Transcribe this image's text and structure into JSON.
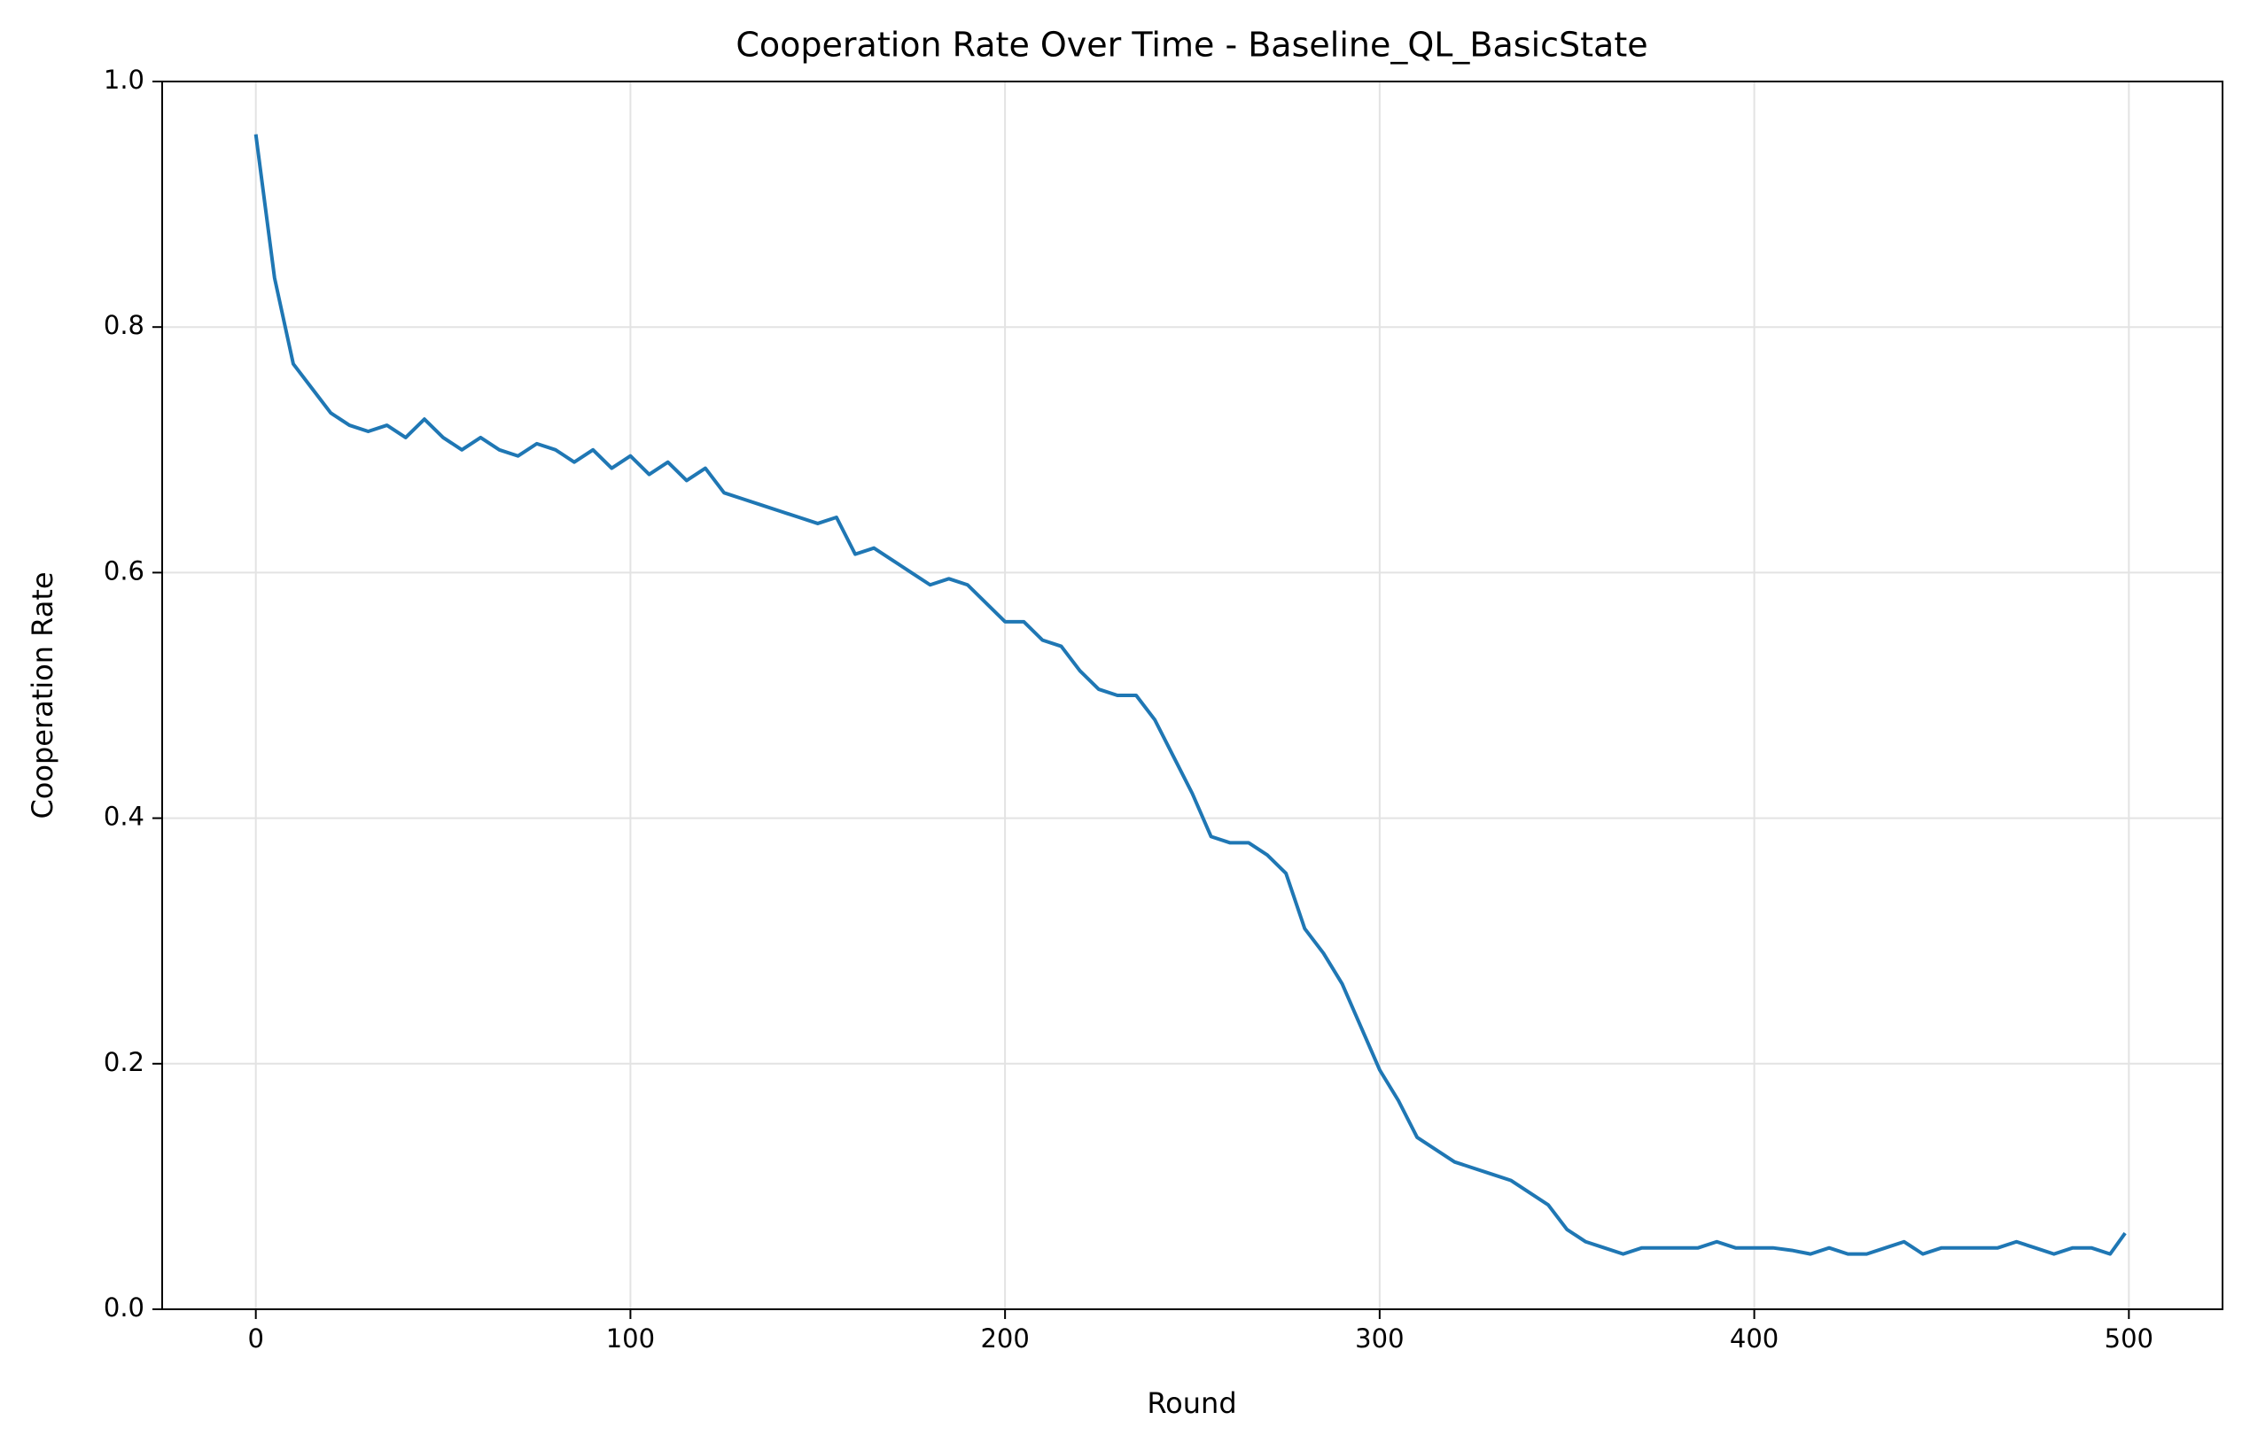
{
  "chart_data": {
    "type": "line",
    "title": "Cooperation Rate Over Time - Baseline_QL_BasicState",
    "x_label": "Round",
    "y_label": "Cooperation Rate",
    "x": [
      0,
      5,
      10,
      15,
      20,
      25,
      30,
      35,
      40,
      45,
      50,
      55,
      60,
      65,
      70,
      75,
      80,
      85,
      90,
      95,
      100,
      105,
      110,
      115,
      120,
      125,
      130,
      135,
      140,
      145,
      150,
      155,
      160,
      165,
      170,
      175,
      180,
      185,
      190,
      195,
      200,
      205,
      210,
      215,
      220,
      225,
      230,
      235,
      240,
      245,
      250,
      255,
      260,
      265,
      270,
      275,
      280,
      285,
      290,
      295,
      300,
      305,
      310,
      315,
      320,
      325,
      330,
      335,
      340,
      345,
      350,
      355,
      360,
      365,
      370,
      375,
      380,
      385,
      390,
      395,
      400,
      405,
      410,
      415,
      420,
      425,
      430,
      435,
      440,
      445,
      450,
      455,
      460,
      465,
      470,
      475,
      480,
      485,
      490,
      495,
      499
    ],
    "series": [
      {
        "name": "Cooperation Rate",
        "color": "#1f77b4",
        "values": [
          0.957,
          0.84,
          0.77,
          0.75,
          0.73,
          0.72,
          0.715,
          0.72,
          0.71,
          0.725,
          0.71,
          0.7,
          0.71,
          0.7,
          0.695,
          0.705,
          0.7,
          0.69,
          0.7,
          0.685,
          0.695,
          0.68,
          0.69,
          0.675,
          0.685,
          0.665,
          0.66,
          0.655,
          0.65,
          0.645,
          0.64,
          0.645,
          0.615,
          0.62,
          0.61,
          0.6,
          0.59,
          0.595,
          0.59,
          0.575,
          0.56,
          0.56,
          0.545,
          0.54,
          0.52,
          0.505,
          0.5,
          0.5,
          0.48,
          0.45,
          0.42,
          0.385,
          0.38,
          0.38,
          0.37,
          0.355,
          0.31,
          0.29,
          0.265,
          0.23,
          0.195,
          0.17,
          0.14,
          0.13,
          0.12,
          0.115,
          0.11,
          0.105,
          0.095,
          0.085,
          0.065,
          0.055,
          0.05,
          0.045,
          0.05,
          0.05,
          0.05,
          0.05,
          0.055,
          0.05,
          0.05,
          0.05,
          0.048,
          0.045,
          0.05,
          0.045,
          0.045,
          0.05,
          0.055,
          0.045,
          0.05,
          0.05,
          0.05,
          0.05,
          0.055,
          0.05,
          0.045,
          0.05,
          0.05,
          0.045,
          0.062
        ]
      }
    ],
    "xlim": [
      -25,
      525
    ],
    "ylim": [
      0,
      1
    ],
    "xticks": [
      0,
      100,
      200,
      300,
      400,
      500
    ],
    "yticks": [
      {
        "value": 0,
        "label": "0.0"
      },
      0.2,
      0.4,
      0.6,
      0.8,
      {
        "value": 1,
        "label": "1.0"
      }
    ],
    "grid": true
  }
}
